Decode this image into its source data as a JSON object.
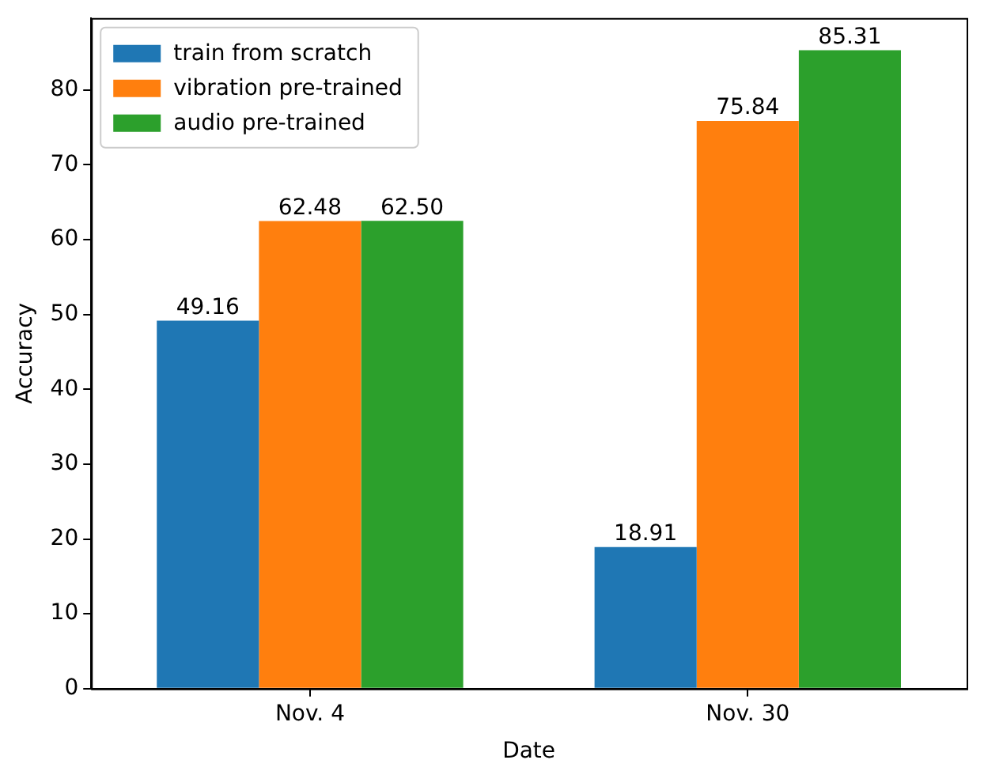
{
  "chart_data": {
    "type": "bar",
    "xlabel": "Date",
    "ylabel": "Accuracy",
    "categories": [
      "Nov. 4",
      "Nov. 30"
    ],
    "series": [
      {
        "name": "train from scratch",
        "color": "#1f77b4",
        "values": [
          49.16,
          18.91
        ]
      },
      {
        "name": "vibration pre-trained",
        "color": "#ff7f0e",
        "values": [
          62.48,
          75.84
        ]
      },
      {
        "name": "audio pre-trained",
        "color": "#2ca02c",
        "values": [
          62.5,
          85.31
        ]
      }
    ],
    "value_labels": [
      [
        "49.16",
        "18.91"
      ],
      [
        "62.48",
        "75.84"
      ],
      [
        "62.50",
        "85.31"
      ]
    ],
    "ylim": [
      0,
      89.6
    ],
    "yticks": [
      0,
      10,
      20,
      30,
      40,
      50,
      60,
      70,
      80
    ],
    "grid": false,
    "legend": "top left"
  }
}
